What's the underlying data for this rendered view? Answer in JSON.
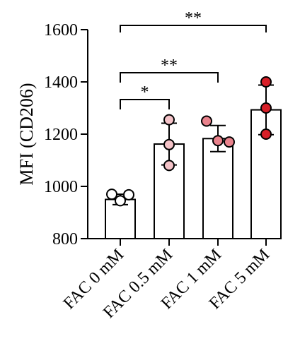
{
  "chart_data": {
    "type": "bar",
    "ylabel": "MFI (CD206)",
    "ylim": [
      800,
      1600
    ],
    "yticks": [
      800,
      1000,
      1200,
      1400,
      1600
    ],
    "categories": [
      "FAC 0 mM",
      "FAC 0.5 mM",
      "FAC 1 mM",
      "FAC 5 mM"
    ],
    "values": [
      950,
      1162,
      1183,
      1293
    ],
    "sd": [
      20,
      80,
      50,
      95
    ],
    "points": [
      [
        970,
        945,
        968
      ],
      [
        1255,
        1160,
        1080
      ],
      [
        1250,
        1170,
        1175
      ],
      [
        1400,
        1300,
        1200
      ]
    ],
    "point_colors": [
      "#ffffff",
      "#f4c3c8",
      "#e9828c",
      "#d71f28"
    ],
    "bar_fill": "#ffffff",
    "comparisons": [
      {
        "from": 0,
        "to": 1,
        "label": "*"
      },
      {
        "from": 0,
        "to": 2,
        "label": "**"
      },
      {
        "from": 0,
        "to": 3,
        "label": "**"
      }
    ]
  }
}
